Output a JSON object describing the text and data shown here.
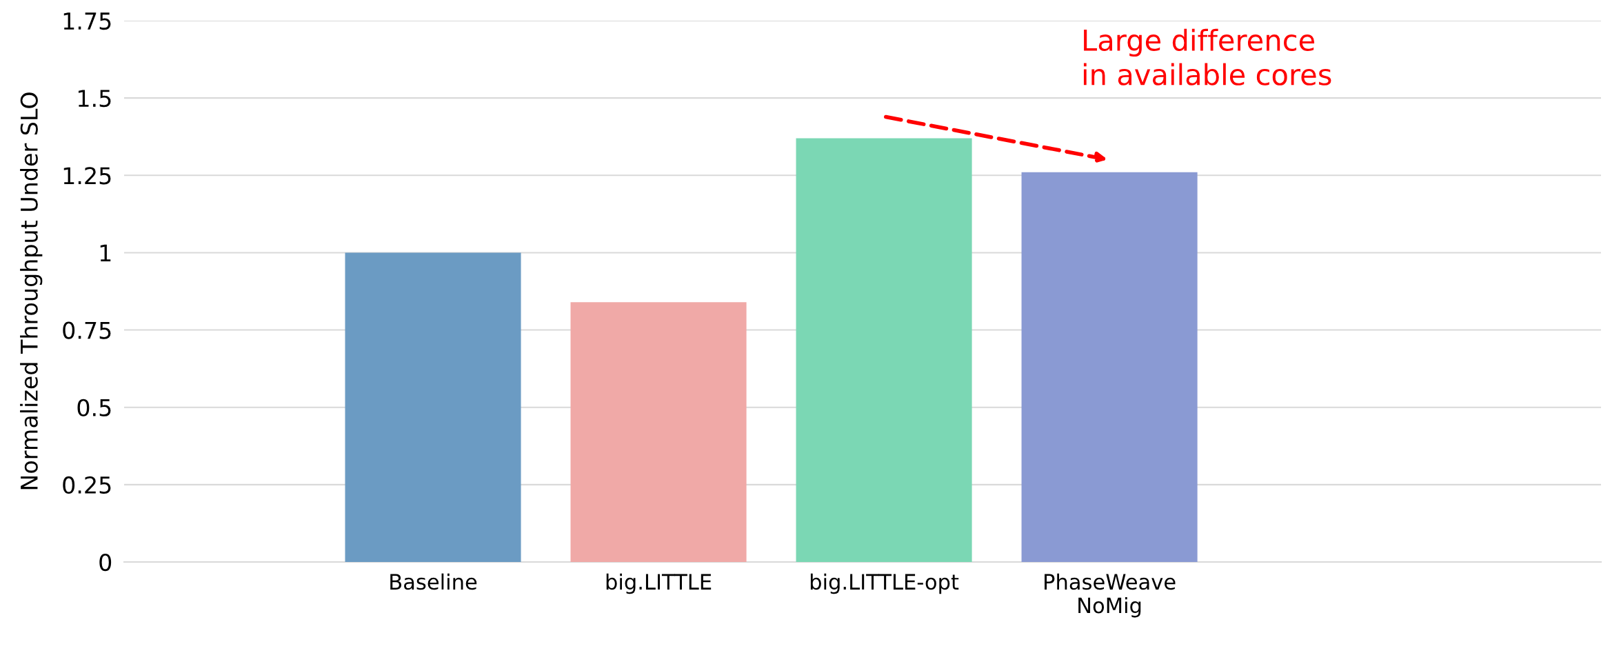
{
  "chart_data": {
    "type": "bar",
    "ylabel": "Normalized Throughput Under SLO",
    "categories": [
      "Baseline",
      "big.LITTLE",
      "big.LITTLE-opt",
      "PhaseWeave\nNoMig"
    ],
    "values": [
      1,
      0.84,
      1.37,
      1.26
    ],
    "colors": [
      "#6b9bc3",
      "#f0a9a7",
      "#7bd7b4",
      "#8a9ad3"
    ],
    "ylim": [
      0,
      1.75
    ],
    "yticks": [
      0,
      0.25,
      0.5,
      0.75,
      1,
      1.25,
      1.5,
      1.75
    ],
    "grid": "y",
    "annotations": [
      "Large difference\nin available cores"
    ]
  }
}
